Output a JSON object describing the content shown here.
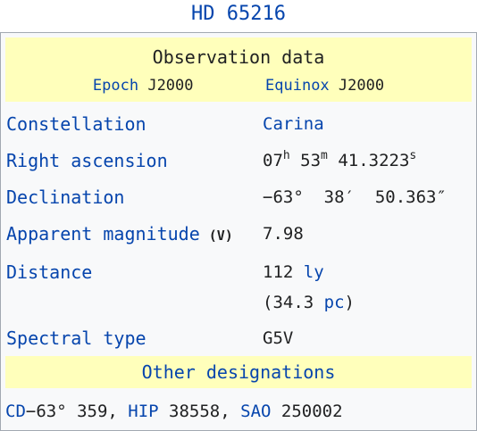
{
  "title": "HD 65216",
  "observation": {
    "header": "Observation data",
    "epoch_label": "Epoch",
    "epoch_value": "J2000",
    "equinox_label": "Equinox",
    "equinox_value": "J2000"
  },
  "rows": {
    "constellation": {
      "label": "Constellation",
      "value": "Carina"
    },
    "ra": {
      "label": "Right ascension",
      "h": "07",
      "h_unit": "h",
      "m": " 53",
      "m_unit": "m",
      "s": " 41.3223",
      "s_unit": "s"
    },
    "dec": {
      "label": "Declination",
      "value": "−63°  38′  50.363″"
    },
    "magnitude": {
      "label": "Apparent magnitude",
      "qualifier": "(V)",
      "value": "7.98"
    },
    "distance": {
      "label": "Distance",
      "value1": "112",
      "unit1": "ly",
      "value2_open": "(34.3 ",
      "unit2": "pc",
      "value2_close": ")"
    },
    "spectral": {
      "label": "Spectral type",
      "value": "G5V"
    }
  },
  "other": {
    "header": "Other designations",
    "cd_link": "CD",
    "cd_value": "−63° 359, ",
    "hip_link": "HIP",
    "hip_value": " 38558, ",
    "sao_link": "SAO",
    "sao_value": " 250002"
  },
  "colors": {
    "link": "#0645ad",
    "header_bg": "#ffffbb",
    "box_bg": "#f8f9fa",
    "border": "#a2a9b1"
  }
}
